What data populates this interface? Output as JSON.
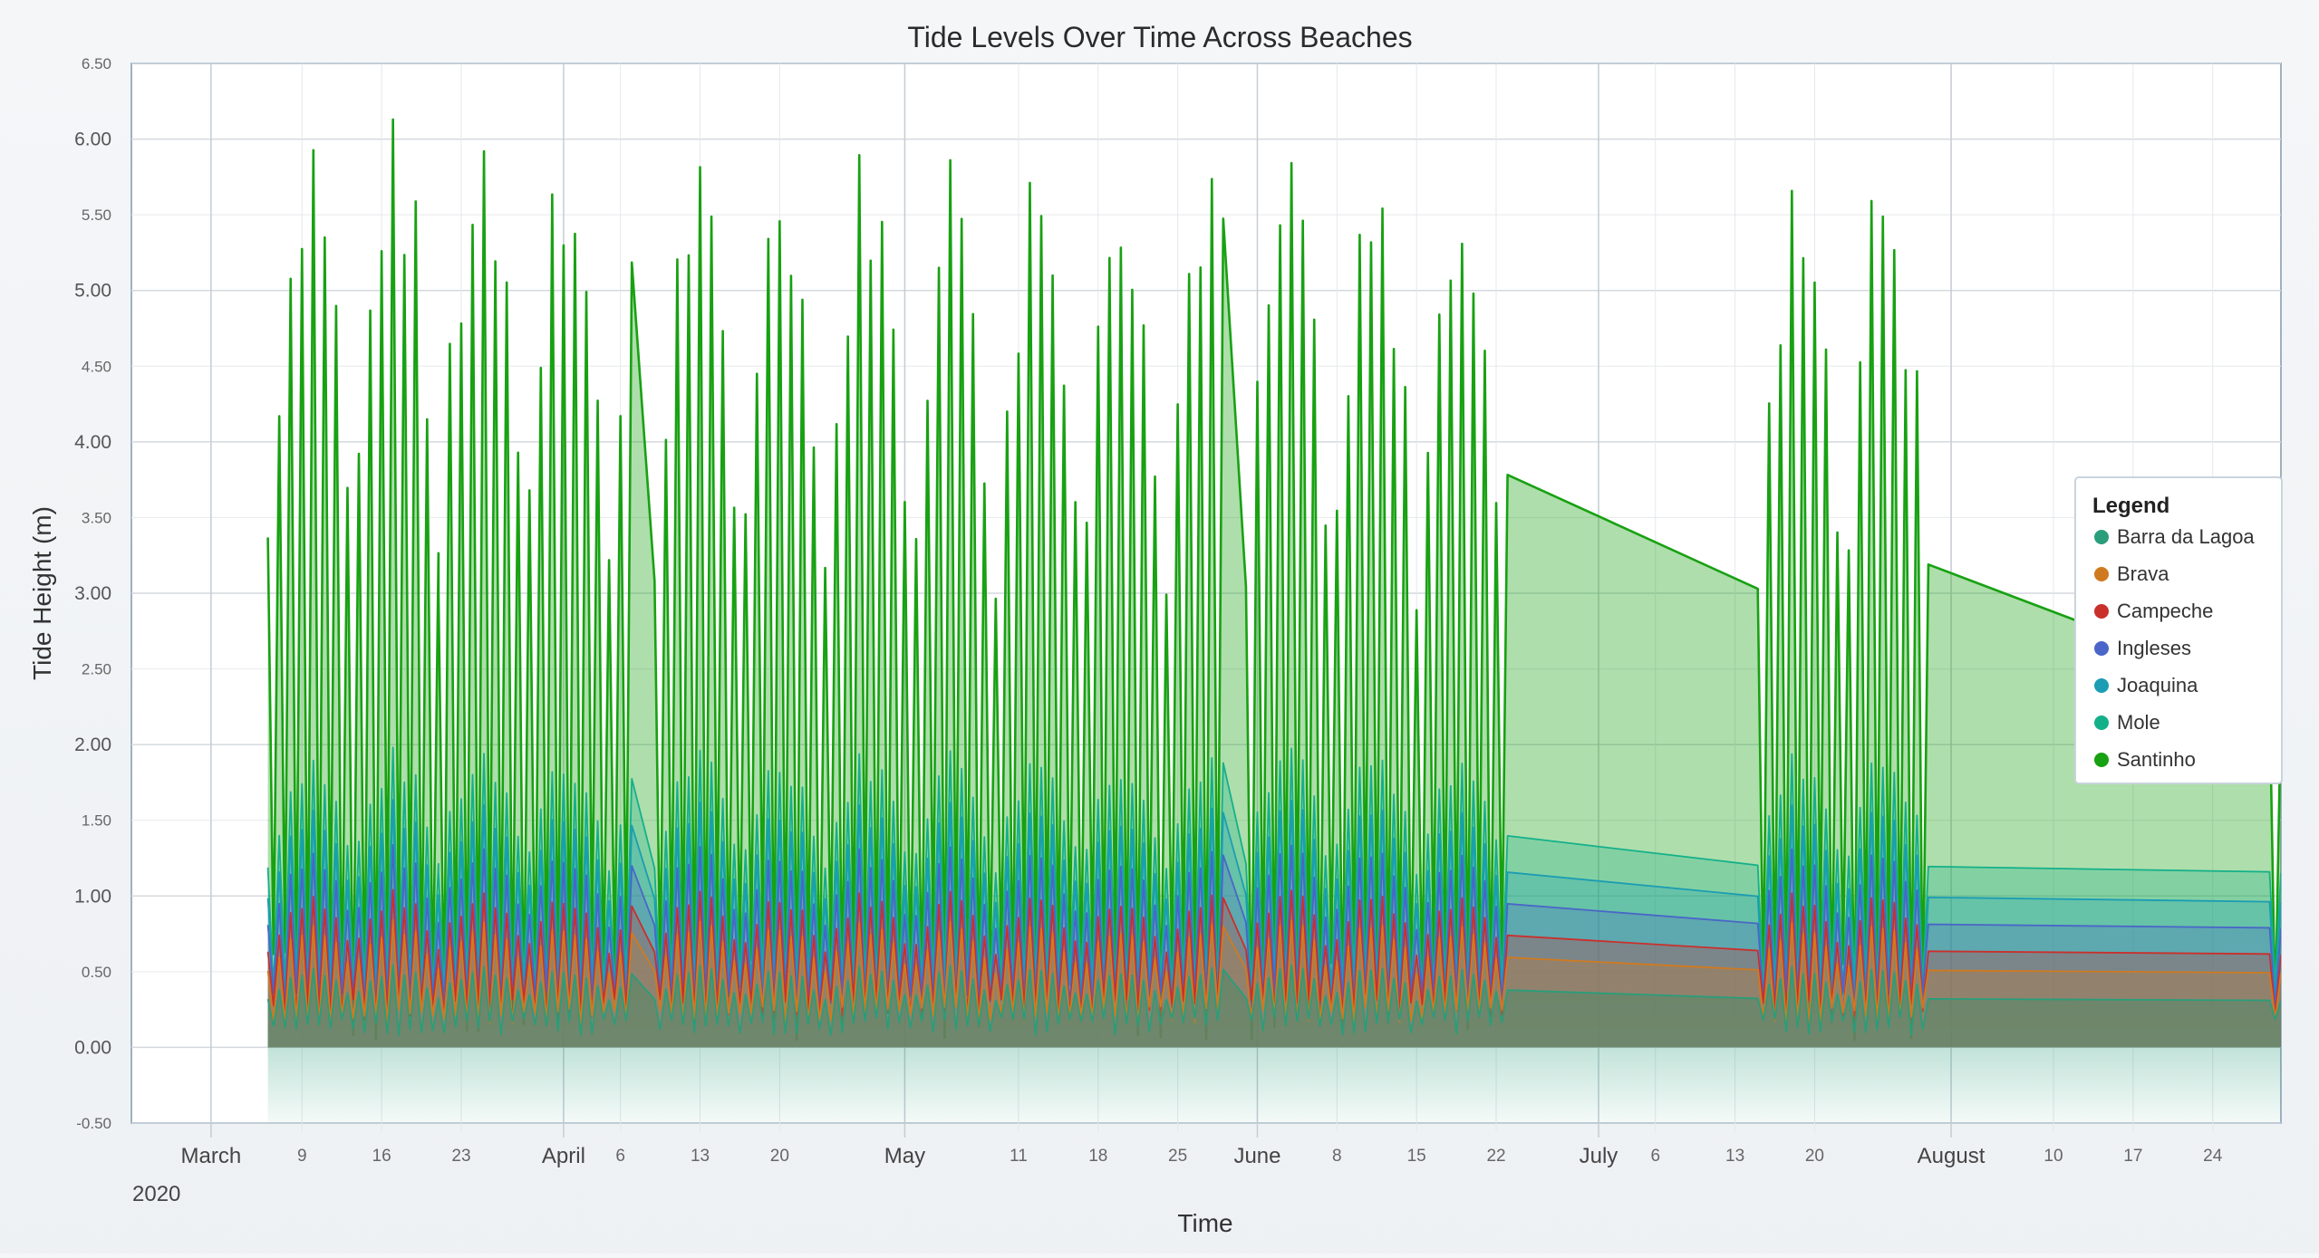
{
  "chart_data": {
    "type": "area",
    "title": "Tide Levels Over Time Across Beaches",
    "xlabel": "Time",
    "ylabel": "Tide Height (m)",
    "ylim": [
      -0.5,
      6.5
    ],
    "x_range": [
      "2020-02-23",
      "2020-08-30"
    ],
    "x_ticks_major": [
      {
        "date": "2020-03-01",
        "label": "March"
      },
      {
        "date": "2020-04-01",
        "label": "April"
      },
      {
        "date": "2020-05-01",
        "label": "May"
      },
      {
        "date": "2020-06-01",
        "label": "June"
      },
      {
        "date": "2020-07-01",
        "label": "July"
      },
      {
        "date": "2020-08-01",
        "label": "August"
      }
    ],
    "x_ticks_minor": [
      {
        "date": "2020-03-09",
        "label": "9"
      },
      {
        "date": "2020-03-16",
        "label": "16"
      },
      {
        "date": "2020-03-23",
        "label": "23"
      },
      {
        "date": "2020-04-06",
        "label": "6"
      },
      {
        "date": "2020-04-13",
        "label": "13"
      },
      {
        "date": "2020-04-20",
        "label": "20"
      },
      {
        "date": "2020-05-11",
        "label": "11"
      },
      {
        "date": "2020-05-18",
        "label": "18"
      },
      {
        "date": "2020-05-25",
        "label": "25"
      },
      {
        "date": "2020-06-08",
        "label": "8"
      },
      {
        "date": "2020-06-15",
        "label": "15"
      },
      {
        "date": "2020-06-22",
        "label": "22"
      },
      {
        "date": "2020-07-06",
        "label": "6"
      },
      {
        "date": "2020-07-13",
        "label": "13"
      },
      {
        "date": "2020-07-20",
        "label": "20"
      },
      {
        "date": "2020-08-10",
        "label": "10"
      },
      {
        "date": "2020-08-17",
        "label": "17"
      },
      {
        "date": "2020-08-24",
        "label": "24"
      }
    ],
    "year_label": "2020",
    "y_ticks_major": [
      {
        "value": 0,
        "label": "0.00"
      },
      {
        "value": 1,
        "label": "1.00"
      },
      {
        "value": 2,
        "label": "2.00"
      },
      {
        "value": 3,
        "label": "3.00"
      },
      {
        "value": 4,
        "label": "4.00"
      },
      {
        "value": 5,
        "label": "5.00"
      },
      {
        "value": 6,
        "label": "6.00"
      }
    ],
    "y_ticks_minor": [
      {
        "value": -0.5,
        "label": "-0.50"
      },
      {
        "value": 0.5,
        "label": "0.50"
      },
      {
        "value": 1.5,
        "label": "1.50"
      },
      {
        "value": 2.5,
        "label": "2.50"
      },
      {
        "value": 3.5,
        "label": "3.50"
      },
      {
        "value": 4.5,
        "label": "4.50"
      },
      {
        "value": 5.5,
        "label": "5.50"
      },
      {
        "value": 6.5,
        "label": "6.50"
      }
    ],
    "stacked": true,
    "legend": {
      "title": "Legend",
      "position": "right"
    },
    "series": [
      {
        "name": "Barra da Lagoa",
        "color": "#2a9d7a",
        "base_low": 0.08,
        "base_high": 0.55
      },
      {
        "name": "Brava",
        "color": "#d07a1f",
        "base_low": 0.15,
        "base_high": 0.85
      },
      {
        "name": "Campeche",
        "color": "#c9302c",
        "base_low": 0.2,
        "base_high": 1.05
      },
      {
        "name": "Ingleses",
        "color": "#4a66c8",
        "base_low": 0.25,
        "base_high": 1.35
      },
      {
        "name": "Joaquina",
        "color": "#1c9db3",
        "base_low": 0.3,
        "base_high": 1.65
      },
      {
        "name": "Mole",
        "color": "#14b08a",
        "base_low": 0.35,
        "base_high": 2.0
      },
      {
        "name": "Santinho",
        "color": "#18a112",
        "base_low": 0.05,
        "base_high": 6.0
      }
    ],
    "segments": [
      {
        "start": "2020-03-06",
        "end": "2020-03-21",
        "peak": 6.5
      },
      {
        "start": "2020-03-21",
        "end": "2020-04-07",
        "peak": 6.35
      },
      {
        "start": "2020-04-09",
        "end": "2020-05-29",
        "peak": 6.22
      },
      {
        "start": "2020-05-31",
        "end": "2020-06-23",
        "peak": 6.08
      },
      {
        "start": "2020-07-15",
        "end": "2020-07-30",
        "peak": 6.15
      },
      {
        "start": "2020-08-29",
        "end": "2020-08-30",
        "peak": 4.75
      }
    ],
    "grid": true
  }
}
